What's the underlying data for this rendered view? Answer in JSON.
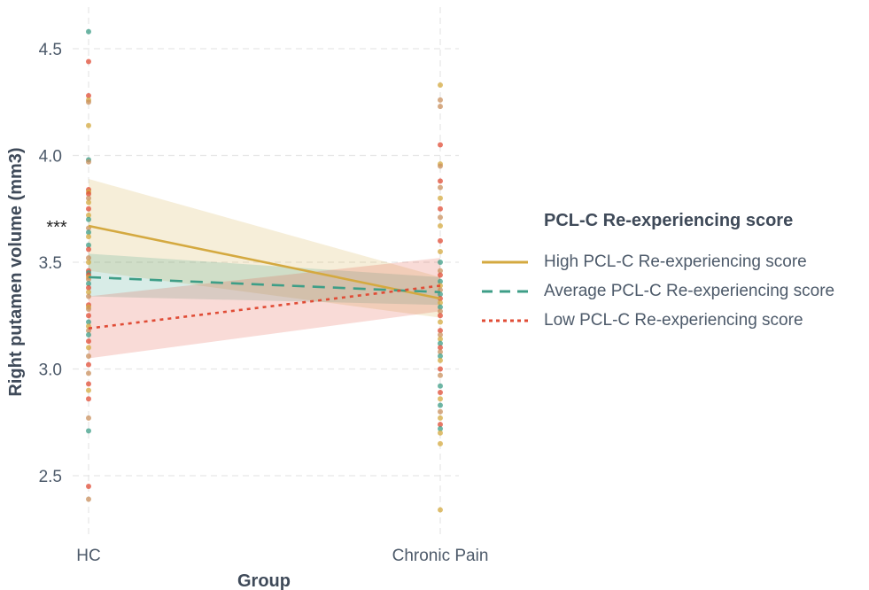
{
  "chart_data": {
    "type": "line",
    "xlabel": "Group",
    "ylabel": "Right putamen volume (mm3)",
    "categories": [
      "HC",
      "Chronic Pain"
    ],
    "ylim": [
      2.25,
      4.65
    ],
    "yticks": [
      2.5,
      3.0,
      3.5,
      4.0,
      4.5
    ],
    "ytick_labels": [
      "2.5",
      "3.0",
      "3.5",
      "4.0",
      "4.5"
    ],
    "grid": true,
    "annotation": {
      "text": "***",
      "x": "HC",
      "y": 3.67
    },
    "legend": {
      "title": "PCL-C Re-experiencing score",
      "placement": "right"
    },
    "series": [
      {
        "name": "High PCL-C Re-experiencing score",
        "color": "#d4a940",
        "dash": "solid",
        "values": [
          3.67,
          3.33
        ],
        "ci_lower": [
          3.46,
          3.24
        ],
        "ci_upper": [
          3.89,
          3.43
        ]
      },
      {
        "name": "Average PCL-C Re-experiencing score",
        "color": "#3e9e87",
        "dash": "dashed",
        "values": [
          3.43,
          3.36
        ],
        "ci_lower": [
          3.34,
          3.3
        ],
        "ci_upper": [
          3.54,
          3.43
        ]
      },
      {
        "name": "Low PCL-C Re-experiencing score",
        "color": "#e04c36",
        "dash": "dotted",
        "values": [
          3.19,
          3.39
        ],
        "ci_lower": [
          3.05,
          3.27
        ],
        "ci_upper": [
          3.34,
          3.52
        ]
      }
    ],
    "points": [
      {
        "group": "HC",
        "values": [
          4.58,
          4.44,
          4.28,
          4.26,
          4.25,
          4.14,
          3.98,
          3.97,
          3.84,
          3.83,
          3.82,
          3.8,
          3.78,
          3.75,
          3.72,
          3.7,
          3.66,
          3.64,
          3.62,
          3.58,
          3.56,
          3.52,
          3.5,
          3.46,
          3.45,
          3.44,
          3.43,
          3.42,
          3.4,
          3.38,
          3.36,
          3.34,
          3.3,
          3.29,
          3.28,
          3.25,
          3.22,
          3.2,
          3.18,
          3.16,
          3.13,
          3.1,
          3.06,
          3.02,
          2.98,
          2.93,
          2.9,
          2.86,
          2.77,
          2.71,
          2.45,
          2.39
        ],
        "colors": [
          "#3e9e87",
          "#e04c36",
          "#e04c36",
          "#d4a940",
          "#c9905e",
          "#d4a940",
          "#3e9e87",
          "#c9905e",
          "#e04c36",
          "#d4a940",
          "#e04c36",
          "#c9905e",
          "#d4a940",
          "#e04c36",
          "#d4a940",
          "#3e9e87",
          "#c9905e",
          "#3e9e87",
          "#d4a940",
          "#3e9e87",
          "#e04c36",
          "#c9905e",
          "#d4a940",
          "#e04c36",
          "#3e9e87",
          "#e04c36",
          "#d4a940",
          "#c9905e",
          "#3e9e87",
          "#e04c36",
          "#d4a940",
          "#c9905e",
          "#e04c36",
          "#d4a940",
          "#c9905e",
          "#e04c36",
          "#3e9e87",
          "#d4a940",
          "#c9905e",
          "#3e9e87",
          "#e04c36",
          "#d4a940",
          "#c9905e",
          "#e04c36",
          "#c9905e",
          "#e04c36",
          "#d4a940",
          "#e04c36",
          "#c9905e",
          "#3e9e87",
          "#e04c36",
          "#c9905e"
        ]
      },
      {
        "group": "Chronic Pain",
        "values": [
          4.33,
          4.26,
          4.23,
          4.05,
          3.96,
          3.95,
          3.88,
          3.85,
          3.8,
          3.75,
          3.71,
          3.67,
          3.6,
          3.55,
          3.5,
          3.46,
          3.44,
          3.41,
          3.39,
          3.37,
          3.35,
          3.33,
          3.31,
          3.29,
          3.27,
          3.25,
          3.22,
          3.18,
          3.16,
          3.14,
          3.12,
          3.1,
          3.08,
          3.06,
          3.04,
          3.0,
          2.97,
          2.92,
          2.89,
          2.86,
          2.83,
          2.8,
          2.77,
          2.74,
          2.72,
          2.7,
          2.65,
          2.34
        ],
        "colors": [
          "#d4a940",
          "#c9905e",
          "#c9905e",
          "#e04c36",
          "#d4a940",
          "#c9905e",
          "#e04c36",
          "#c9905e",
          "#d4a940",
          "#e04c36",
          "#c9905e",
          "#d4a940",
          "#e04c36",
          "#d4a940",
          "#3e9e87",
          "#c9905e",
          "#e04c36",
          "#3e9e87",
          "#d4a940",
          "#c9905e",
          "#3e9e87",
          "#e04c36",
          "#d4a940",
          "#3e9e87",
          "#c9905e",
          "#e04c36",
          "#d4a940",
          "#e04c36",
          "#c9905e",
          "#d4a940",
          "#3e9e87",
          "#e04c36",
          "#c9905e",
          "#3e9e87",
          "#d4a940",
          "#e04c36",
          "#c9905e",
          "#3e9e87",
          "#e04c36",
          "#d4a940",
          "#3e9e87",
          "#c9905e",
          "#d4a940",
          "#e04c36",
          "#3e9e87",
          "#d4a940",
          "#d4a940",
          "#d4a940"
        ]
      }
    ]
  }
}
